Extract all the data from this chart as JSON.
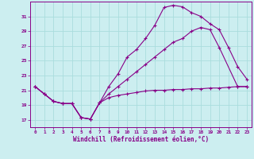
{
  "bg_color": "#cceef0",
  "grid_color": "#aadddd",
  "line_color": "#880088",
  "xlabel": "Windchill (Refroidissement éolien,°C)",
  "xlim": [
    -0.5,
    23.5
  ],
  "ylim": [
    16,
    33
  ],
  "yticks": [
    17,
    19,
    21,
    23,
    25,
    27,
    29,
    31
  ],
  "xticks": [
    0,
    1,
    2,
    3,
    4,
    5,
    6,
    7,
    8,
    9,
    10,
    11,
    12,
    13,
    14,
    15,
    16,
    17,
    18,
    19,
    20,
    21,
    22,
    23
  ],
  "line1_x": [
    0,
    1,
    2,
    3,
    4,
    5,
    6,
    7,
    8,
    9,
    10,
    11,
    12,
    13,
    14,
    15,
    16,
    17,
    18,
    19,
    20,
    21,
    22,
    23
  ],
  "line1_y": [
    21.5,
    20.5,
    19.5,
    19.2,
    19.2,
    17.3,
    17.1,
    19.3,
    21.5,
    23.2,
    25.5,
    26.5,
    28.0,
    29.8,
    32.2,
    32.5,
    32.3,
    31.5,
    31.0,
    30.0,
    29.2,
    26.8,
    24.2,
    22.5
  ],
  "line2_x": [
    0,
    1,
    2,
    3,
    4,
    5,
    6,
    7,
    8,
    9,
    10,
    11,
    12,
    13,
    14,
    15,
    16,
    17,
    18,
    19,
    20,
    22,
    23
  ],
  "line2_y": [
    21.5,
    20.5,
    19.5,
    19.2,
    19.2,
    17.3,
    17.1,
    19.3,
    20.5,
    21.5,
    22.5,
    23.5,
    24.5,
    25.5,
    26.5,
    27.5,
    28.0,
    29.0,
    29.5,
    29.2,
    26.8,
    21.5,
    21.5
  ],
  "line3_x": [
    0,
    1,
    2,
    3,
    4,
    5,
    6,
    7,
    8,
    9,
    10,
    11,
    12,
    13,
    14,
    15,
    16,
    17,
    18,
    19,
    20,
    21,
    22,
    23
  ],
  "line3_y": [
    21.5,
    20.5,
    19.5,
    19.2,
    19.2,
    17.3,
    17.1,
    19.3,
    20.0,
    20.3,
    20.5,
    20.7,
    20.9,
    21.0,
    21.0,
    21.1,
    21.1,
    21.2,
    21.2,
    21.3,
    21.3,
    21.4,
    21.5,
    21.5
  ]
}
